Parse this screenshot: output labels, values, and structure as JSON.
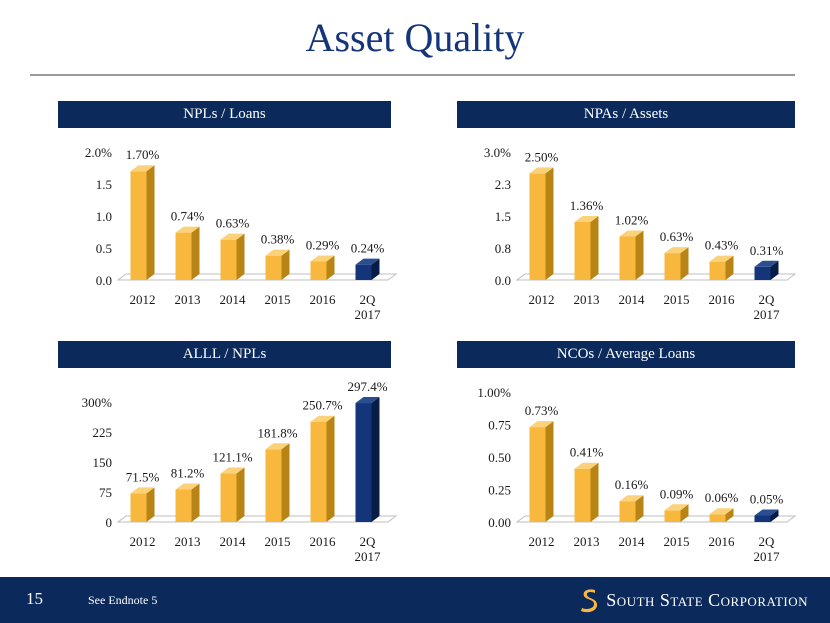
{
  "title": "Asset Quality",
  "footer": {
    "page_number": "15",
    "endnote": "See Endnote 5",
    "company": "South State Corporation"
  },
  "colors": {
    "navy": "#0b2a5b",
    "gold": "#f8b83d",
    "bar_dark": "#14357a"
  },
  "chart_data": [
    {
      "type": "bar",
      "title": "NPLs / Loans",
      "categories": [
        "2012",
        "2013",
        "2014",
        "2015",
        "2016",
        "2Q 2017"
      ],
      "values": [
        1.7,
        0.74,
        0.63,
        0.38,
        0.29,
        0.24
      ],
      "labels": [
        "1.70%",
        "0.74%",
        "0.63%",
        "0.38%",
        "0.29%",
        "0.24%"
      ],
      "yticks": [
        "0.0",
        "0.5",
        "1.0",
        "1.5",
        "2.0%"
      ],
      "ylim": [
        0,
        2.0
      ],
      "highlight_last": true
    },
    {
      "type": "bar",
      "title": "NPAs / Assets",
      "categories": [
        "2012",
        "2013",
        "2014",
        "2015",
        "2016",
        "2Q 2017"
      ],
      "values": [
        2.5,
        1.36,
        1.02,
        0.63,
        0.43,
        0.31
      ],
      "labels": [
        "2.50%",
        "1.36%",
        "1.02%",
        "0.63%",
        "0.43%",
        "0.31%"
      ],
      "yticks": [
        "0.0",
        "0.8",
        "1.5",
        "2.3",
        "3.0%"
      ],
      "ylim": [
        0,
        3.0
      ],
      "highlight_last": true
    },
    {
      "type": "bar",
      "title": "ALLL / NPLs",
      "categories": [
        "2012",
        "2013",
        "2014",
        "2015",
        "2016",
        "2Q 2017"
      ],
      "values": [
        71.5,
        81.2,
        121.1,
        181.8,
        250.7,
        297.4
      ],
      "labels": [
        "71.5%",
        "81.2%",
        "121.1%",
        "181.8%",
        "250.7%",
        "297.4%"
      ],
      "yticks": [
        "0",
        "75",
        "150",
        "225",
        "300%"
      ],
      "ylim": [
        0,
        300
      ],
      "highlight_last": true
    },
    {
      "type": "bar",
      "title": "NCOs / Average Loans",
      "categories": [
        "2012",
        "2013",
        "2014",
        "2015",
        "2016",
        "2Q 2017"
      ],
      "values": [
        0.73,
        0.41,
        0.16,
        0.09,
        0.06,
        0.05
      ],
      "labels": [
        "0.73%",
        "0.41%",
        "0.16%",
        "0.09%",
        "0.06%",
        "0.05%"
      ],
      "yticks": [
        "0.00",
        "0.25",
        "0.50",
        "0.75",
        "1.00%"
      ],
      "ylim": [
        0,
        1.0
      ],
      "highlight_last": true
    }
  ]
}
